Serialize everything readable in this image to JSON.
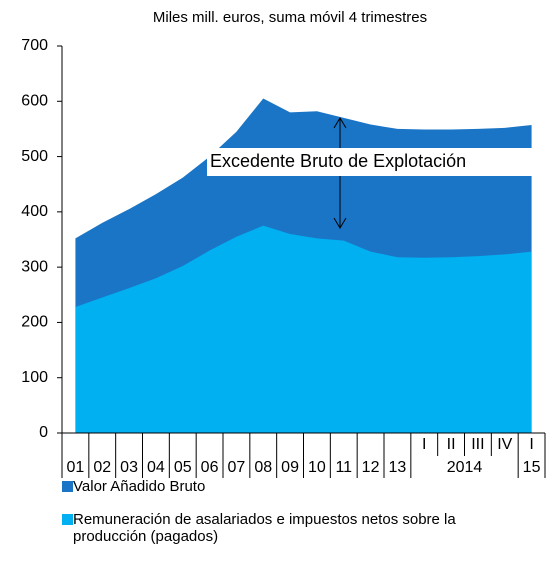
{
  "chart_data": {
    "type": "area",
    "subtitle": "Miles mill. euros, suma móvil 4 trimestres",
    "annotation": "Excedente Bruto de Explotación",
    "categories": [
      "01",
      "02",
      "03",
      "04",
      "05",
      "06",
      "07",
      "08",
      "09",
      "10",
      "11",
      "12",
      "13",
      "I",
      "II",
      "III",
      "IV",
      "I"
    ],
    "category_groups": [
      {
        "label": "2014",
        "start": 13,
        "end": 16
      },
      {
        "label": "15",
        "start": 17,
        "end": 17
      }
    ],
    "series": [
      {
        "name": "Valor Añadido Bruto",
        "color": "#1a75c7",
        "values": [
          352,
          380,
          405,
          432,
          462,
          500,
          545,
          605,
          580,
          582,
          570,
          558,
          550,
          549,
          549,
          550,
          552,
          557
        ]
      },
      {
        "name": "Remuneración de asalariados e impuestos netos sobre la producción (pagados)",
        "color": "#00b0f0",
        "values": [
          228,
          245,
          262,
          280,
          302,
          330,
          355,
          375,
          360,
          352,
          348,
          328,
          318,
          317,
          318,
          320,
          323,
          328
        ]
      }
    ],
    "ylim": [
      0,
      700
    ],
    "yticks": [
      0,
      100,
      200,
      300,
      400,
      500,
      600,
      700
    ]
  }
}
